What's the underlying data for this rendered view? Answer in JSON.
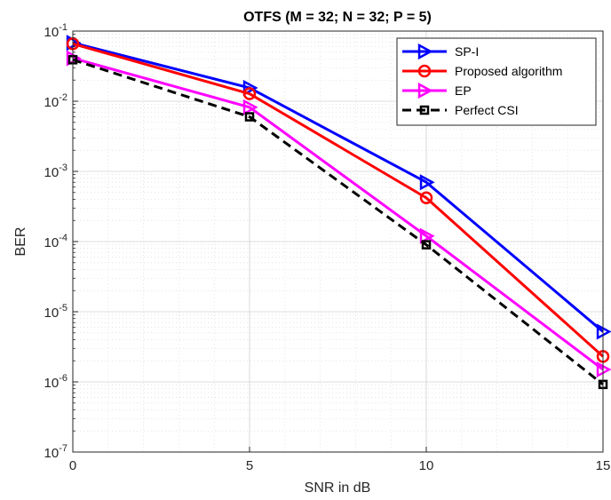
{
  "chart_data": {
    "type": "line",
    "title": "OTFS (M = 32; N = 32; P = 5)",
    "xlabel": "SNR in dB",
    "ylabel": "BER",
    "x": [
      0,
      5,
      10,
      15
    ],
    "xlim": [
      0,
      15
    ],
    "ylim": [
      1e-07,
      0.1
    ],
    "yscale": "log",
    "grid": true,
    "minor_grid": true,
    "legend_position": "top-right",
    "x_ticks": [
      "0",
      "5",
      "10",
      "15"
    ],
    "y_ticks": [
      {
        "value": 1e-07,
        "base": "10",
        "exp": "-7"
      },
      {
        "value": 1e-06,
        "base": "10",
        "exp": "-6"
      },
      {
        "value": 1e-05,
        "base": "10",
        "exp": "-5"
      },
      {
        "value": 0.0001,
        "base": "10",
        "exp": "-4"
      },
      {
        "value": 0.001,
        "base": "10",
        "exp": "-3"
      },
      {
        "value": 0.01,
        "base": "10",
        "exp": "-2"
      },
      {
        "value": 0.1,
        "base": "10",
        "exp": "-1"
      }
    ],
    "series": [
      {
        "name": "SP-I",
        "color": "#0000ff",
        "marker": "triangle-right",
        "dash": "solid",
        "values": [
          0.068,
          0.0155,
          0.0007,
          5.2e-06
        ]
      },
      {
        "name": "Proposed algorithm",
        "color": "#ff0000",
        "marker": "circle",
        "dash": "solid",
        "values": [
          0.066,
          0.0128,
          0.00042,
          2.3e-06
        ]
      },
      {
        "name": "EP",
        "color": "#ff00ff",
        "marker": "triangle-right",
        "dash": "solid",
        "values": [
          0.041,
          0.0082,
          0.00012,
          1.5e-06
        ]
      },
      {
        "name": "Perfect CSI",
        "color": "#000000",
        "marker": "square",
        "dash": "dashed",
        "values": [
          0.039,
          0.006,
          9e-05,
          9.2e-07
        ]
      }
    ]
  }
}
